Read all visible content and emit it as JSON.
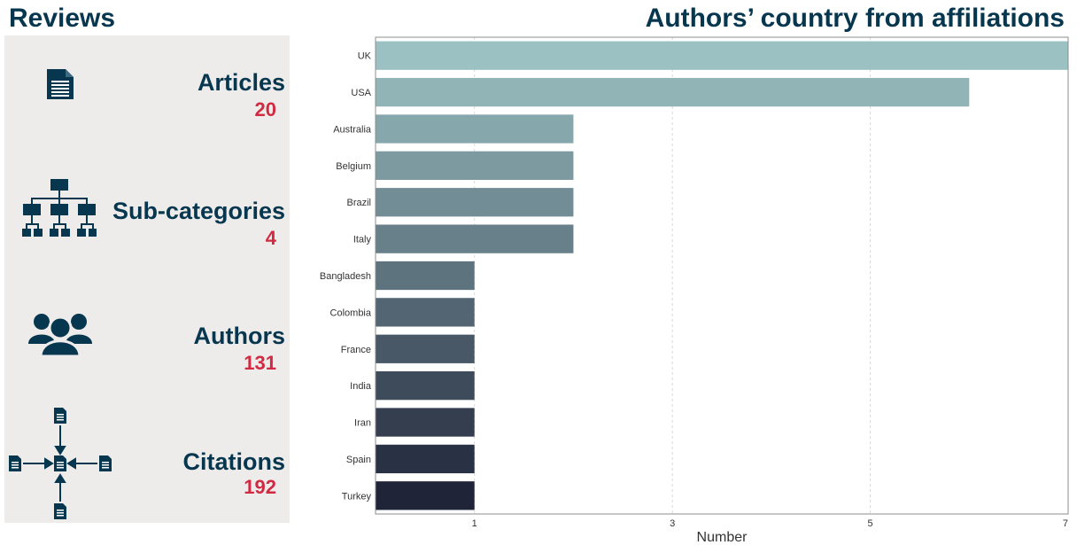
{
  "reviews": {
    "title": "Reviews",
    "stats": [
      {
        "label": "Articles",
        "value": "20",
        "icon": "document-icon"
      },
      {
        "label": "Sub-categories",
        "value": "4",
        "icon": "hierarchy-icon"
      },
      {
        "label": "Authors",
        "value": "131",
        "icon": "users-icon"
      },
      {
        "label": "Citations",
        "value": "192",
        "icon": "citations-icon"
      }
    ]
  },
  "colors": {
    "navy": "#07374f",
    "accent": "#d12a42",
    "panel": "#eeeceb",
    "bar_top": "#9bc1c3",
    "bar_bottom": "#1f2438"
  },
  "chart_data": {
    "type": "bar",
    "orientation": "horizontal",
    "title": "Authors’ country from affiliations",
    "xlabel": "Number",
    "ylabel": "",
    "categories": [
      "UK",
      "USA",
      "Australia",
      "Belgium",
      "Brazil",
      "Italy",
      "Bangladesh",
      "Colombia",
      "France",
      "India",
      "Iran",
      "Spain",
      "Turkey"
    ],
    "values": [
      7,
      6,
      2,
      2,
      2,
      2,
      1,
      1,
      1,
      1,
      1,
      1,
      1
    ],
    "xlim": [
      0,
      7
    ],
    "xticks": [
      1,
      3,
      5,
      7
    ],
    "grid": "vertical dashed",
    "legend": "none"
  }
}
